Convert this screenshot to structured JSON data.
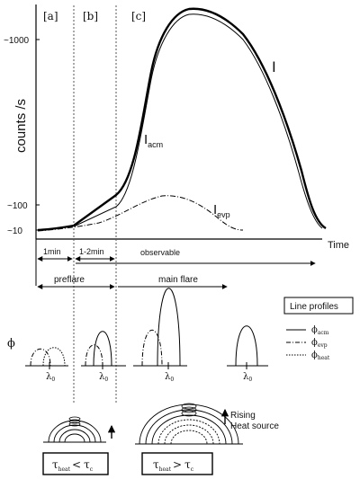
{
  "chart": {
    "ylabel": "counts /s",
    "xlabel": "Time",
    "yticks": [
      "~1000",
      "~100",
      "~10"
    ],
    "phases": [
      "[a]",
      "[b]",
      "[c]"
    ],
    "curve_labels": {
      "total": "I",
      "acm_main": "I",
      "acm_sub": "acm",
      "evp_main": "I",
      "evp_sub": "evp"
    }
  },
  "timeline": {
    "t1": "1min",
    "t2": "1-2min",
    "observable": "observable",
    "preflare": "preflare",
    "main_flare": "main flare"
  },
  "profiles": {
    "phi": "ϕ",
    "lambda_main": "λ",
    "lambda_sub": "0",
    "legend_title": "Line profiles",
    "legend": [
      {
        "main": "ϕ",
        "sub": "acm"
      },
      {
        "main": "ϕ",
        "sub": "evp"
      },
      {
        "main": "ϕ",
        "sub": "heat"
      }
    ]
  },
  "loops": {
    "rising_line1": "Rising",
    "rising_line2": "Heat source",
    "tau": "τ",
    "heat_sub": "heat",
    "c_sub": "c",
    "less": "<",
    "greater": ">"
  }
}
